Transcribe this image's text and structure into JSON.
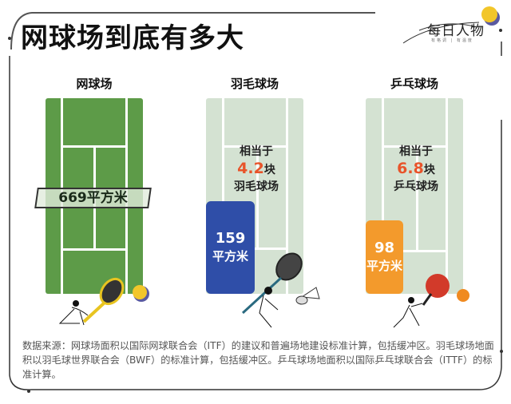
{
  "title": "网球场到底有多大",
  "logo": {
    "text": "每日人物",
    "subtitle": "有格调 | 有温度"
  },
  "colors": {
    "tennis_court": "#5d9b48",
    "light_court": "#d4e2d2",
    "badminton_box": "#2f4ea8",
    "pingpong_box": "#f39a2c",
    "highlight": "#e8542a",
    "tennis_ball": "#f2c62a"
  },
  "courts": [
    {
      "name": "网球场",
      "area_label": "669平方米"
    },
    {
      "name": "羽毛球场",
      "prefix": "相当于",
      "ratio": "4.2",
      "unit": "块",
      "suffix": "羽毛球场",
      "area_value": "159",
      "area_unit": "平方米"
    },
    {
      "name": "乒乓球场",
      "prefix": "相当于",
      "ratio": "6.8",
      "unit": "块",
      "suffix": "乒乓球场",
      "area_value": "98",
      "area_unit": "平方米"
    }
  ],
  "source_note": "数据来源：网球场面积以国际网球联合会（ITF）的建议和普遍场地建设标准计算，包括缓冲区。羽毛球场地面积以羽毛球世界联合会（BWF）的标准计算，包括缓冲区。乒乓球场地面积以国际乒乓球联合会（ITTF）的标准计算。"
}
